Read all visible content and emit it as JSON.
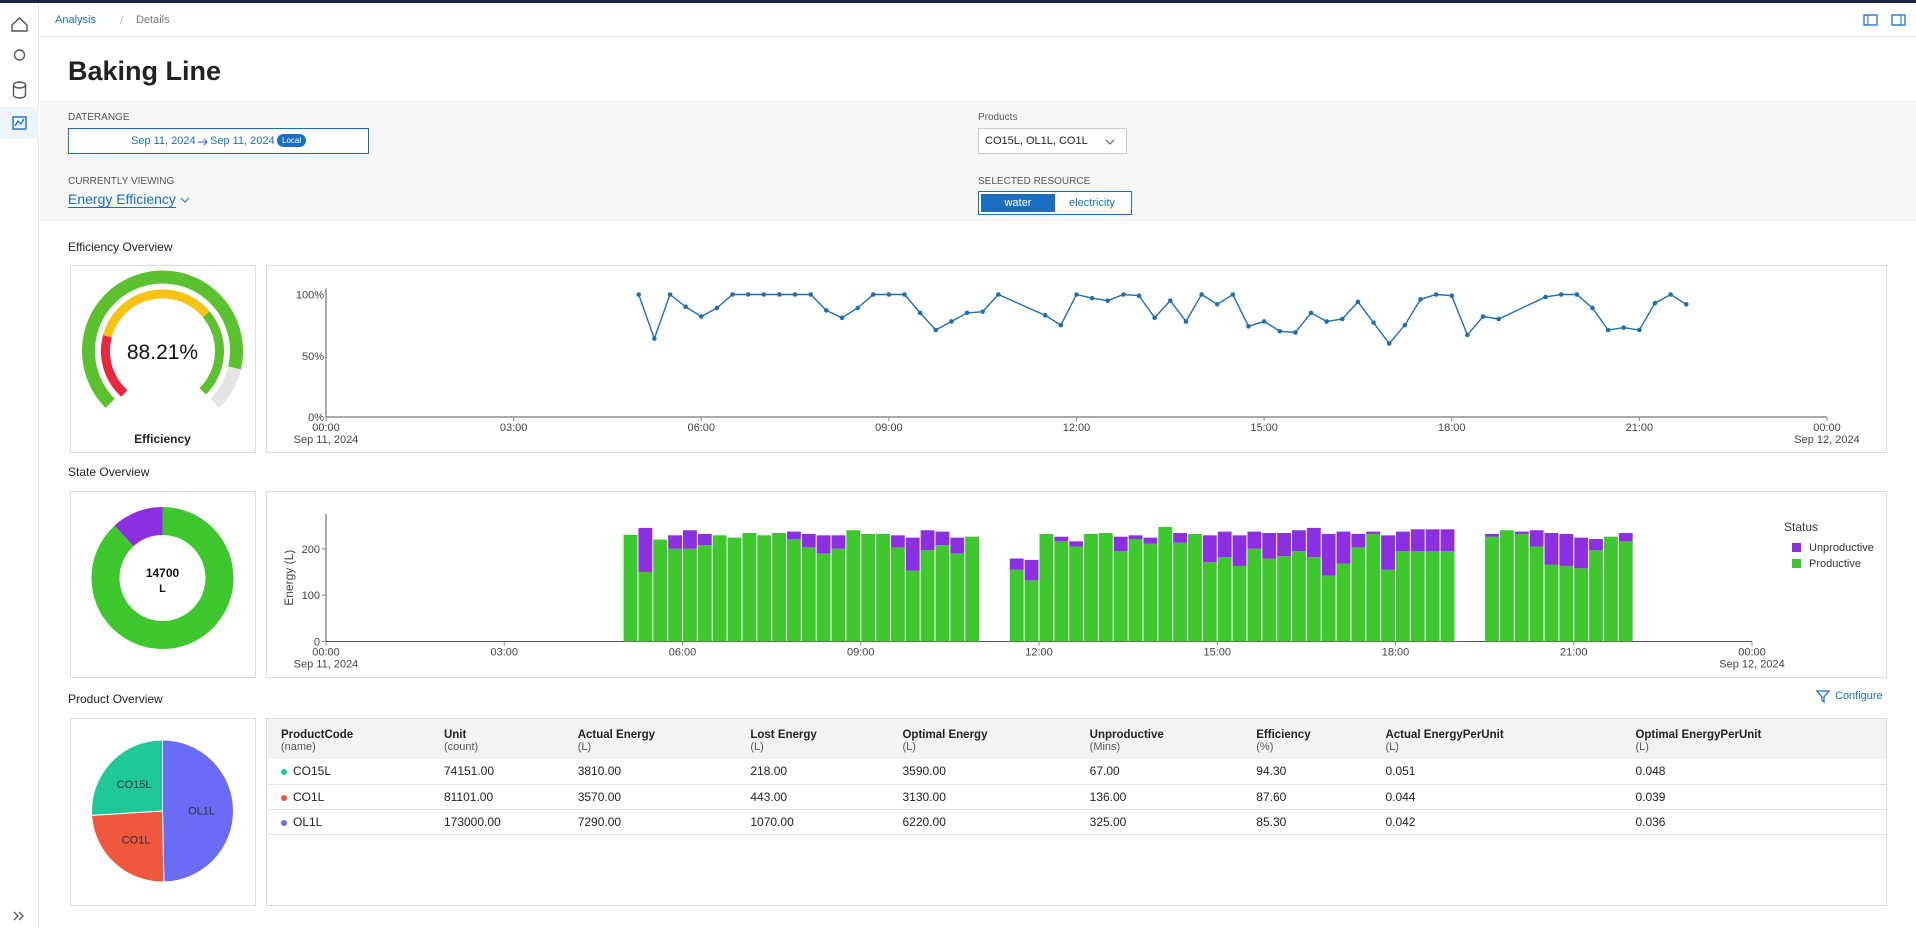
{
  "nav": {
    "breadcrumb": [
      "Analysis",
      "Details"
    ]
  },
  "header": {
    "title": "Baking Line"
  },
  "filters": {
    "daterange_label": "DATERANGE",
    "date_from": "Sep 11, 2024",
    "date_to": "Sep 11, 2024",
    "timezone": "Local",
    "products_label": "Products",
    "products": "CO15L, OL1L, CO1L",
    "viewing_label": "CURRENTLY VIEWING",
    "viewing": "Energy Efficiency",
    "resource_label": "SELECTED RESOURCE",
    "resources": [
      "water",
      "electricity"
    ],
    "selected_resource": 0
  },
  "sections": [
    "Efficiency Overview",
    "State Overview",
    "Product Overview"
  ],
  "configure": "Configure",
  "chart_data": [
    {
      "type": "gauge",
      "value": 88.21,
      "value_label": "88.21%",
      "label": "Efficiency",
      "ylim": [
        0,
        100
      ],
      "color": "#5cc12e",
      "track_color": "#e4e4e4"
    },
    {
      "type": "line",
      "color": "#1f6fb2",
      "xlim": [
        0,
        24
      ],
      "ylim": [
        0,
        100
      ],
      "xticks": [
        {
          "value": 0,
          "label": "00:00"
        },
        {
          "value": 3,
          "label": "03:00"
        },
        {
          "value": 6,
          "label": "06:00"
        },
        {
          "value": 9,
          "label": "09:00"
        },
        {
          "value": 12,
          "label": "12:00"
        },
        {
          "value": 15,
          "label": "15:00"
        },
        {
          "value": 18,
          "label": "18:00"
        },
        {
          "value": 21,
          "label": "21:00"
        },
        {
          "value": 24,
          "label": "00:00"
        }
      ],
      "xtick_dates": [
        "Sep 11, 2024",
        "Sep 12, 2024"
      ],
      "yticks": [
        {
          "value": 0,
          "label": "0%"
        },
        {
          "value": 50,
          "label": "50%"
        },
        {
          "value": 100,
          "label": "100%"
        }
      ],
      "x": [
        5,
        5.25,
        5.5,
        5.75,
        6,
        6.25,
        6.5,
        6.75,
        7,
        7.25,
        7.5,
        7.75,
        8,
        8.25,
        8.5,
        8.75,
        9,
        9.25,
        9.5,
        9.75,
        10,
        10.25,
        10.5,
        10.75,
        11.5,
        11.75,
        12,
        12.25,
        12.5,
        12.75,
        13,
        13.25,
        13.5,
        13.75,
        14,
        14.25,
        14.5,
        14.75,
        15,
        15.25,
        15.5,
        15.75,
        16,
        16.25,
        16.5,
        16.75,
        17,
        17.25,
        17.5,
        17.75,
        18,
        18.25,
        18.5,
        18.75,
        19.5,
        19.75,
        20,
        20.25,
        20.5,
        20.75,
        21,
        21.25,
        21.5,
        21.75
      ],
      "values": [
        100,
        64,
        100,
        90,
        82,
        89,
        100,
        100,
        100,
        100,
        100,
        100,
        87,
        81,
        89,
        100,
        100,
        100,
        85,
        71,
        78,
        85,
        86,
        100,
        83,
        75,
        100,
        97,
        95,
        100,
        99,
        81,
        95,
        78,
        100,
        92,
        100,
        74,
        78,
        70,
        69,
        85,
        78,
        80,
        94,
        77,
        60,
        75,
        96,
        100,
        99,
        67,
        82,
        80,
        98,
        100,
        100,
        89,
        71,
        73,
        71,
        93,
        100,
        92
      ]
    },
    {
      "type": "bar",
      "ylabel": "Energy (L)",
      "legend_title": "Status",
      "xlim": [
        0,
        24
      ],
      "ylim": [
        0,
        275
      ],
      "yticks": [
        0,
        100,
        200
      ],
      "xticks": [
        {
          "value": 0,
          "label": "00:00"
        },
        {
          "value": 3,
          "label": "03:00"
        },
        {
          "value": 6,
          "label": "06:00"
        },
        {
          "value": 9,
          "label": "09:00"
        },
        {
          "value": 12,
          "label": "12:00"
        },
        {
          "value": 15,
          "label": "15:00"
        },
        {
          "value": 18,
          "label": "18:00"
        },
        {
          "value": 21,
          "label": "21:00"
        },
        {
          "value": 24,
          "label": "00:00"
        }
      ],
      "xtick_dates": [
        "Sep 11, 2024",
        "Sep 12, 2024"
      ],
      "x": [
        5,
        5.25,
        5.5,
        5.75,
        6,
        6.25,
        6.5,
        6.75,
        7,
        7.25,
        7.5,
        7.75,
        8,
        8.25,
        8.5,
        8.75,
        9,
        9.25,
        9.5,
        9.75,
        10,
        10.25,
        10.5,
        10.75,
        11.5,
        11.75,
        12,
        12.25,
        12.5,
        12.75,
        13,
        13.25,
        13.5,
        13.75,
        14,
        14.25,
        14.5,
        14.75,
        15,
        15.25,
        15.5,
        15.75,
        16,
        16.25,
        16.5,
        16.75,
        17,
        17.25,
        17.5,
        17.75,
        18,
        18.25,
        18.5,
        18.75,
        19.5,
        19.75,
        20,
        20.25,
        20.5,
        20.75,
        21,
        21.25,
        21.5,
        21.75
      ],
      "series": [
        {
          "name": "Productive",
          "color": "#3ec72e",
          "values": [
            230,
            150,
            220,
            200,
            200,
            208,
            229,
            224,
            234,
            229,
            234,
            221,
            203,
            190,
            200,
            240,
            232,
            232,
            203,
            153,
            197,
            208,
            190,
            226,
            155,
            132,
            232,
            216,
            205,
            232,
            234,
            195,
            221,
            211,
            247,
            213,
            232,
            171,
            182,
            163,
            200,
            179,
            184,
            195,
            182,
            142,
            168,
            203,
            232,
            155,
            195,
            195,
            195,
            195,
            226,
            240,
            232,
            205,
            166,
            163,
            158,
            197,
            226,
            216
          ]
        },
        {
          "name": "Unproductive",
          "color": "#8b2fe0",
          "values": [
            0,
            95,
            0,
            29,
            40,
            24,
            0,
            0,
            0,
            0,
            0,
            16,
            29,
            39,
            29,
            0,
            0,
            0,
            26,
            71,
            43,
            29,
            34,
            0,
            24,
            44,
            0,
            10,
            11,
            0,
            0,
            31,
            8,
            13,
            0,
            21,
            0,
            58,
            55,
            66,
            37,
            55,
            50,
            45,
            63,
            90,
            69,
            29,
            5,
            74,
            42,
            47,
            47,
            47,
            6,
            0,
            5,
            35,
            68,
            69,
            66,
            24,
            0,
            18
          ]
        }
      ]
    },
    {
      "type": "donut",
      "values": [
        12969,
        1731
      ],
      "colors": [
        "#3ec72e",
        "#8b2fe0"
      ],
      "total": 14700,
      "unit": "L"
    },
    {
      "type": "pie",
      "categories": [
        "OL1L",
        "CO1L",
        "CO15L"
      ],
      "values": [
        7290,
        3570,
        3810
      ],
      "colors": [
        "#6a6cf6",
        "#f0573f",
        "#1ec997"
      ]
    }
  ],
  "table": {
    "columns": [
      {
        "name": "ProductCode",
        "unit": "(name)"
      },
      {
        "name": "Unit",
        "unit": "(count)"
      },
      {
        "name": "Actual Energy",
        "unit": "(L)"
      },
      {
        "name": "Lost Energy",
        "unit": "(L)"
      },
      {
        "name": "Optimal Energy",
        "unit": "(L)"
      },
      {
        "name": "Unproductive",
        "unit": "(Mins)"
      },
      {
        "name": "Efficiency",
        "unit": "(%)"
      },
      {
        "name": "Actual EnergyPerUnit",
        "unit": "(L)"
      },
      {
        "name": "Optimal EnergyPerUnit",
        "unit": "(L)"
      }
    ],
    "rows": [
      {
        "color": "#1ec997",
        "cells": [
          "CO15L",
          "74151.00",
          "3810.00",
          "218.00",
          "3590.00",
          "67.00",
          "94.30",
          "0.051",
          "0.048"
        ]
      },
      {
        "color": "#f0573f",
        "cells": [
          "CO1L",
          "81101.00",
          "3570.00",
          "443.00",
          "3130.00",
          "136.00",
          "87.60",
          "0.044",
          "0.039"
        ]
      },
      {
        "color": "#6a6cf6",
        "cells": [
          "OL1L",
          "173000.00",
          "7290.00",
          "1070.00",
          "6220.00",
          "325.00",
          "85.30",
          "0.042",
          "0.036"
        ]
      }
    ]
  }
}
